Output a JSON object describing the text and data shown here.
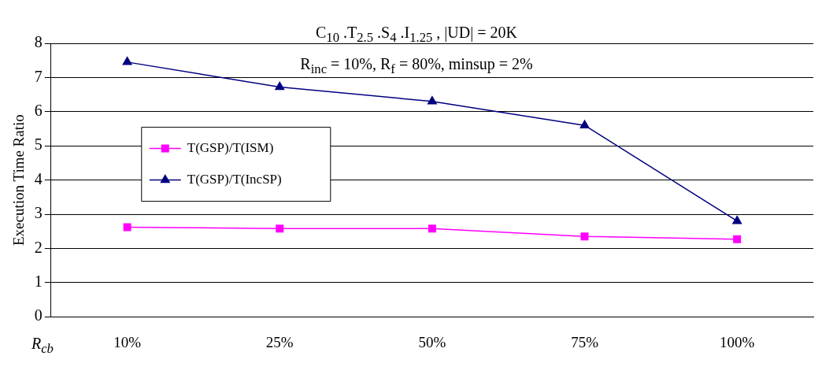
{
  "chart_data": {
    "type": "line",
    "title": "C$_{10}$ .T$_{2.5}$ .S$_{4}$ .I$_{1.25}$ , |UD| = 20K",
    "subtitle": "R$_{inc}$ = 10%, R$_{f}$ = 80%, minsup = 2%",
    "xlabel": "R$_{cb}$",
    "ylabel": "Execution Time Ratio",
    "categories": [
      "10%",
      "25%",
      "50%",
      "75%",
      "100%"
    ],
    "series": [
      {
        "name": "T(GSP)/T(ISM)",
        "color": "#ff00ff",
        "marker": "square",
        "values": [
          2.62,
          2.58,
          2.58,
          2.35,
          2.27
        ]
      },
      {
        "name": "T(GSP)/T(IncSP)",
        "color": "#000080",
        "marker": "triangle",
        "values": [
          7.45,
          6.72,
          6.3,
          5.6,
          2.8
        ]
      }
    ],
    "ylim": [
      0,
      8
    ],
    "yticks": [
      0,
      1,
      2,
      3,
      4,
      5,
      6,
      7,
      8
    ],
    "grid": "y",
    "legend": "left"
  }
}
